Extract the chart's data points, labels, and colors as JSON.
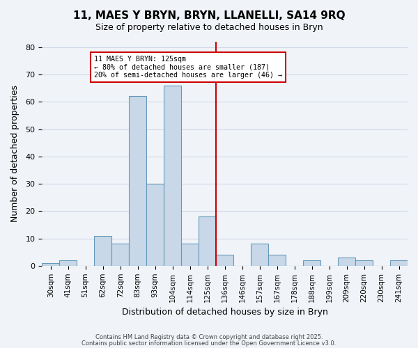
{
  "title": "11, MAES Y BRYN, BRYN, LLANELLI, SA14 9RQ",
  "subtitle": "Size of property relative to detached houses in Bryn",
  "xlabel": "Distribution of detached houses by size in Bryn",
  "ylabel": "Number of detached properties",
  "bin_labels": [
    "30sqm",
    "41sqm",
    "51sqm",
    "62sqm",
    "72sqm",
    "83sqm",
    "93sqm",
    "104sqm",
    "114sqm",
    "125sqm",
    "136sqm",
    "146sqm",
    "157sqm",
    "167sqm",
    "178sqm",
    "188sqm",
    "199sqm",
    "209sqm",
    "220sqm",
    "230sqm",
    "241sqm"
  ],
  "bar_heights": [
    1,
    2,
    0,
    11,
    8,
    62,
    30,
    66,
    8,
    18,
    4,
    0,
    8,
    4,
    0,
    2,
    0,
    3,
    2,
    0,
    2
  ],
  "bar_color": "#c8d8e8",
  "bar_edge_color": "#6699bb",
  "grid_color": "#d0d8e8",
  "vline_pos": 9.5,
  "vline_color": "#cc0000",
  "annotation_text": "11 MAES Y BRYN: 125sqm\n← 80% of detached houses are smaller (187)\n20% of semi-detached houses are larger (46) →",
  "annotation_box_color": "#ffffff",
  "annotation_box_edge": "#cc0000",
  "ylim": [
    0,
    82
  ],
  "yticks": [
    0,
    10,
    20,
    30,
    40,
    50,
    60,
    70,
    80
  ],
  "footer1": "Contains HM Land Registry data © Crown copyright and database right 2025.",
  "footer2": "Contains public sector information licensed under the Open Government Licence v3.0.",
  "bg_color": "#f0f4f8"
}
